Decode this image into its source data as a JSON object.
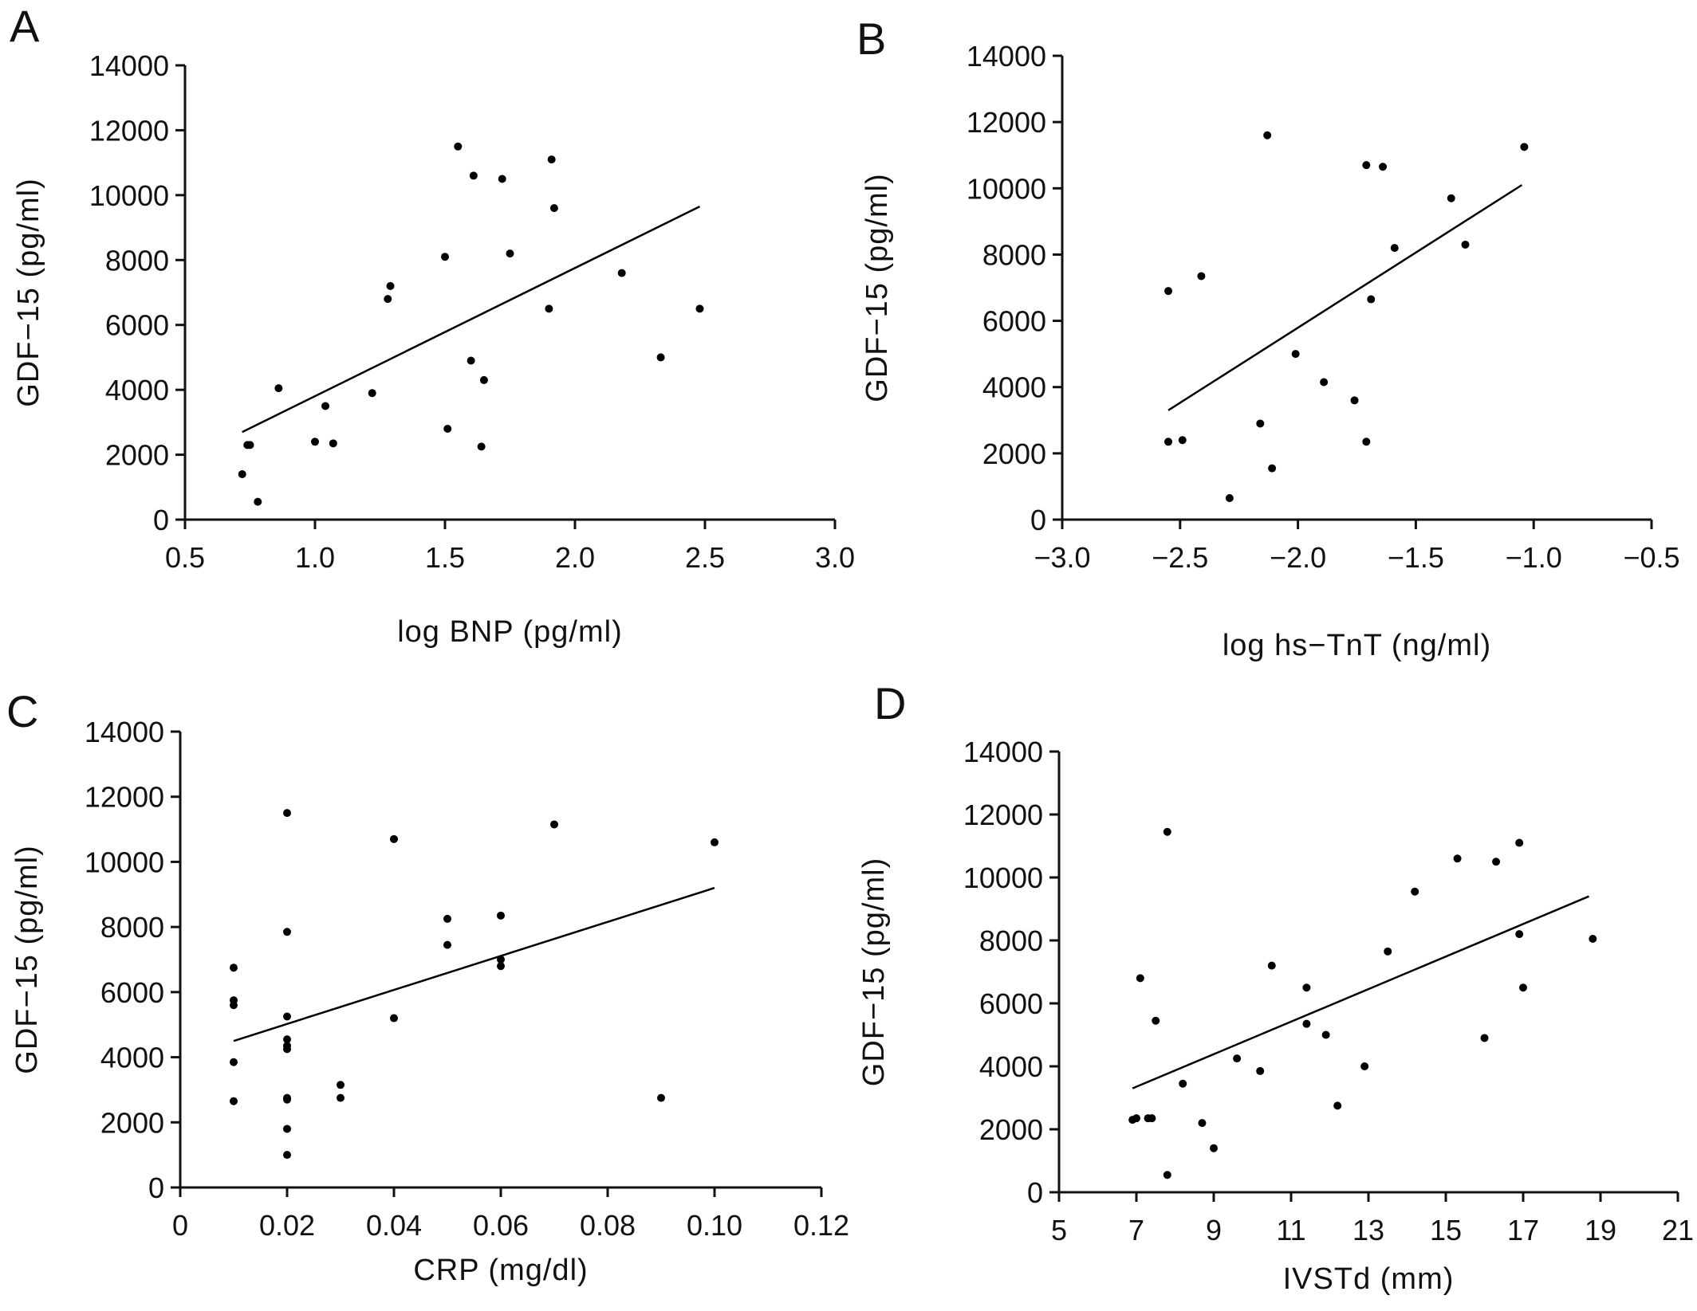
{
  "chart_data": [
    {
      "panel": "A",
      "type": "scatter",
      "xlabel": "log BNP (pg/ml)",
      "ylabel": "GDF−15 (pg/ml)",
      "xlim": [
        0.5,
        3.0
      ],
      "ylim": [
        0,
        14000
      ],
      "xticks": [
        "0.5",
        "1.0",
        "1.5",
        "2.0",
        "2.5",
        "3.0"
      ],
      "yticks": [
        "0",
        "2000",
        "4000",
        "6000",
        "8000",
        "10000",
        "12000",
        "14000"
      ],
      "grid": false,
      "points": [
        [
          0.72,
          1400
        ],
        [
          0.74,
          2300
        ],
        [
          0.75,
          2300
        ],
        [
          0.78,
          550
        ],
        [
          0.86,
          4050
        ],
        [
          1.0,
          2400
        ],
        [
          1.04,
          3500
        ],
        [
          1.07,
          2350
        ],
        [
          1.22,
          3900
        ],
        [
          1.28,
          6800
        ],
        [
          1.29,
          7200
        ],
        [
          1.5,
          8100
        ],
        [
          1.51,
          2800
        ],
        [
          1.55,
          11500
        ],
        [
          1.6,
          4900
        ],
        [
          1.61,
          10600
        ],
        [
          1.64,
          2250
        ],
        [
          1.65,
          4300
        ],
        [
          1.72,
          10500
        ],
        [
          1.75,
          8200
        ],
        [
          1.9,
          6500
        ],
        [
          1.91,
          11100
        ],
        [
          1.92,
          9600
        ],
        [
          2.18,
          7600
        ],
        [
          2.33,
          5000
        ],
        [
          2.48,
          6500
        ]
      ],
      "fit_line": [
        [
          0.72,
          2700
        ],
        [
          2.48,
          9650
        ]
      ]
    },
    {
      "panel": "B",
      "type": "scatter",
      "xlabel": "log hs−TnT (ng/ml)",
      "ylabel": "GDF−15 (pg/ml)",
      "xlim": [
        -3.0,
        -0.5
      ],
      "ylim": [
        0,
        14000
      ],
      "xticks": [
        "−3.0",
        "−2.5",
        "−2.0",
        "−1.5",
        "−1.0",
        "−0.5"
      ],
      "yticks": [
        "0",
        "2000",
        "4000",
        "6000",
        "8000",
        "10000",
        "12000",
        "14000"
      ],
      "grid": false,
      "points": [
        [
          -2.55,
          6900
        ],
        [
          -2.55,
          2350
        ],
        [
          -2.49,
          2400
        ],
        [
          -2.41,
          7350
        ],
        [
          -2.29,
          650
        ],
        [
          -2.16,
          2900
        ],
        [
          -2.13,
          11600
        ],
        [
          -2.11,
          1550
        ],
        [
          -2.01,
          5000
        ],
        [
          -1.89,
          4150
        ],
        [
          -1.76,
          3600
        ],
        [
          -1.71,
          10700
        ],
        [
          -1.71,
          2350
        ],
        [
          -1.69,
          6650
        ],
        [
          -1.64,
          10650
        ],
        [
          -1.59,
          8200
        ],
        [
          -1.35,
          9700
        ],
        [
          -1.29,
          8300
        ],
        [
          -1.04,
          11250
        ]
      ],
      "fit_line": [
        [
          -2.55,
          3300
        ],
        [
          -1.05,
          10100
        ]
      ]
    },
    {
      "panel": "C",
      "type": "scatter",
      "xlabel": "CRP (mg/dl)",
      "ylabel": "GDF−15 (pg/ml)",
      "xlim": [
        0,
        0.12
      ],
      "ylim": [
        0,
        14000
      ],
      "xticks": [
        "0",
        "0.02",
        "0.04",
        "0.06",
        "0.08",
        "0.10",
        "0.12"
      ],
      "yticks": [
        "0",
        "2000",
        "4000",
        "6000",
        "8000",
        "10000",
        "12000",
        "14000"
      ],
      "grid": false,
      "points": [
        [
          0.01,
          6750
        ],
        [
          0.01,
          5750
        ],
        [
          0.01,
          5600
        ],
        [
          0.01,
          3850
        ],
        [
          0.01,
          2650
        ],
        [
          0.02,
          11500
        ],
        [
          0.02,
          7850
        ],
        [
          0.02,
          5250
        ],
        [
          0.02,
          4550
        ],
        [
          0.02,
          4350
        ],
        [
          0.02,
          4250
        ],
        [
          0.02,
          2750
        ],
        [
          0.02,
          2700
        ],
        [
          0.02,
          1800
        ],
        [
          0.02,
          1000
        ],
        [
          0.03,
          3150
        ],
        [
          0.03,
          2750
        ],
        [
          0.04,
          10700
        ],
        [
          0.04,
          5200
        ],
        [
          0.05,
          8250
        ],
        [
          0.05,
          7450
        ],
        [
          0.06,
          8350
        ],
        [
          0.06,
          7000
        ],
        [
          0.06,
          6800
        ],
        [
          0.07,
          11150
        ],
        [
          0.09,
          2750
        ],
        [
          0.1,
          10600
        ]
      ],
      "fit_line": [
        [
          0.01,
          4500
        ],
        [
          0.1,
          9200
        ]
      ]
    },
    {
      "panel": "D",
      "type": "scatter",
      "xlabel": "IVSTd (mm)",
      "ylabel": "GDF−15 (pg/ml)",
      "xlim": [
        5,
        21
      ],
      "ylim": [
        0,
        14000
      ],
      "xticks": [
        "5",
        "7",
        "9",
        "11",
        "13",
        "15",
        "17",
        "19",
        "21"
      ],
      "yticks": [
        "0",
        "2000",
        "4000",
        "6000",
        "8000",
        "10000",
        "12000",
        "14000"
      ],
      "grid": false,
      "points": [
        [
          6.9,
          2300
        ],
        [
          7.0,
          2350
        ],
        [
          7.1,
          6800
        ],
        [
          7.3,
          2350
        ],
        [
          7.4,
          2350
        ],
        [
          7.5,
          5450
        ],
        [
          7.8,
          11450
        ],
        [
          7.8,
          550
        ],
        [
          8.2,
          3450
        ],
        [
          8.7,
          2200
        ],
        [
          9.0,
          1400
        ],
        [
          9.6,
          4250
        ],
        [
          10.2,
          3850
        ],
        [
          10.5,
          7200
        ],
        [
          11.4,
          6500
        ],
        [
          11.4,
          5350
        ],
        [
          11.9,
          5000
        ],
        [
          12.2,
          2750
        ],
        [
          12.9,
          4000
        ],
        [
          13.5,
          7650
        ],
        [
          14.2,
          9550
        ],
        [
          15.3,
          10600
        ],
        [
          16.0,
          4900
        ],
        [
          16.3,
          10500
        ],
        [
          16.9,
          11100
        ],
        [
          16.9,
          8200
        ],
        [
          17.0,
          6500
        ],
        [
          18.8,
          8050
        ]
      ],
      "fit_line": [
        [
          6.9,
          3300
        ],
        [
          18.7,
          9400
        ]
      ]
    }
  ]
}
